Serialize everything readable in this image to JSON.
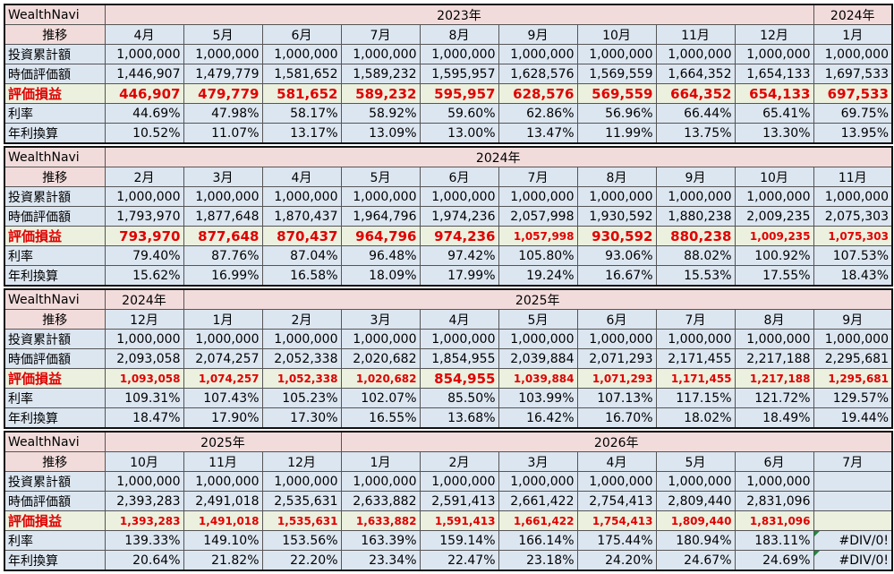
{
  "blocks": [
    {
      "header_label": "WealthNavi",
      "row_label": "推移",
      "years": [
        "2023年",
        null,
        null,
        null,
        null,
        null,
        null,
        null,
        null,
        "2024年"
      ],
      "months": [
        "4月",
        "5月",
        "6月",
        "7月",
        "8月",
        "9月",
        "10月",
        "11月",
        "12月",
        "1月"
      ],
      "rows": [
        {
          "label": "投資累計額",
          "values": [
            "1,000,000",
            "1,000,000",
            "1,000,000",
            "1,000,000",
            "1,000,000",
            "1,000,000",
            "1,000,000",
            "1,000,000",
            "1,000,000",
            "1,000,000"
          ]
        },
        {
          "label": "時価評価額",
          "values": [
            "1,446,907",
            "1,479,779",
            "1,581,652",
            "1,589,232",
            "1,595,957",
            "1,628,576",
            "1,569,559",
            "1,664,352",
            "1,654,133",
            "1,697,533"
          ]
        },
        {
          "label": "評価損益",
          "values": [
            "446,907",
            "479,779",
            "581,652",
            "589,232",
            "595,957",
            "628,576",
            "569,559",
            "664,352",
            "654,133",
            "697,533"
          ]
        },
        {
          "label": "利率",
          "values": [
            "44.69%",
            "47.98%",
            "58.17%",
            "58.92%",
            "59.60%",
            "62.86%",
            "56.96%",
            "66.44%",
            "65.41%",
            "69.75%"
          ]
        },
        {
          "label": "年利換算",
          "values": [
            "10.52%",
            "11.07%",
            "13.17%",
            "13.09%",
            "13.00%",
            "13.47%",
            "11.99%",
            "13.75%",
            "13.30%",
            "13.95%"
          ]
        }
      ]
    },
    {
      "header_label": "WealthNavi",
      "row_label": "推移",
      "years": [
        "2024年",
        null,
        null,
        null,
        null,
        null,
        null,
        null,
        null,
        null
      ],
      "months": [
        "2月",
        "3月",
        "4月",
        "5月",
        "6月",
        "7月",
        "8月",
        "9月",
        "10月",
        "11月"
      ],
      "rows": [
        {
          "label": "投資累計額",
          "values": [
            "1,000,000",
            "1,000,000",
            "1,000,000",
            "1,000,000",
            "1,000,000",
            "1,000,000",
            "1,000,000",
            "1,000,000",
            "1,000,000",
            "1,000,000"
          ]
        },
        {
          "label": "時価評価額",
          "values": [
            "1,793,970",
            "1,877,648",
            "1,870,437",
            "1,964,796",
            "1,974,236",
            "2,057,998",
            "1,930,592",
            "1,880,238",
            "2,009,235",
            "2,075,303"
          ]
        },
        {
          "label": "評価損益",
          "values": [
            "793,970",
            "877,648",
            "870,437",
            "964,796",
            "974,236",
            "1,057,998",
            "930,592",
            "880,238",
            "1,009,235",
            "1,075,303"
          ]
        },
        {
          "label": "利率",
          "values": [
            "79.40%",
            "87.76%",
            "87.04%",
            "96.48%",
            "97.42%",
            "105.80%",
            "93.06%",
            "88.02%",
            "100.92%",
            "107.53%"
          ]
        },
        {
          "label": "年利換算",
          "values": [
            "15.62%",
            "16.99%",
            "16.58%",
            "18.09%",
            "17.99%",
            "19.24%",
            "16.67%",
            "15.53%",
            "17.55%",
            "18.43%"
          ]
        }
      ]
    },
    {
      "header_label": "WealthNavi",
      "row_label": "推移",
      "years": [
        "2024年",
        "2025年",
        null,
        null,
        null,
        null,
        null,
        null,
        null,
        null
      ],
      "months": [
        "12月",
        "1月",
        "2月",
        "3月",
        "4月",
        "5月",
        "6月",
        "7月",
        "8月",
        "9月"
      ],
      "rows": [
        {
          "label": "投資累計額",
          "values": [
            "1,000,000",
            "1,000,000",
            "1,000,000",
            "1,000,000",
            "1,000,000",
            "1,000,000",
            "1,000,000",
            "1,000,000",
            "1,000,000",
            "1,000,000"
          ]
        },
        {
          "label": "時価評価額",
          "values": [
            "2,093,058",
            "2,074,257",
            "2,052,338",
            "2,020,682",
            "1,854,955",
            "2,039,884",
            "2,071,293",
            "2,171,455",
            "2,217,188",
            "2,295,681"
          ]
        },
        {
          "label": "評価損益",
          "values": [
            "1,093,058",
            "1,074,257",
            "1,052,338",
            "1,020,682",
            "854,955",
            "1,039,884",
            "1,071,293",
            "1,171,455",
            "1,217,188",
            "1,295,681"
          ]
        },
        {
          "label": "利率",
          "values": [
            "109.31%",
            "107.43%",
            "105.23%",
            "102.07%",
            "85.50%",
            "103.99%",
            "107.13%",
            "117.15%",
            "121.72%",
            "129.57%"
          ]
        },
        {
          "label": "年利換算",
          "values": [
            "18.47%",
            "17.90%",
            "17.30%",
            "16.55%",
            "13.68%",
            "16.42%",
            "16.70%",
            "18.02%",
            "18.49%",
            "19.44%"
          ]
        }
      ]
    },
    {
      "header_label": "WealthNavi",
      "row_label": "推移",
      "years": [
        "2025年",
        null,
        null,
        "2026年",
        null,
        null,
        null,
        null,
        null,
        null
      ],
      "months": [
        "10月",
        "11月",
        "12月",
        "1月",
        "2月",
        "3月",
        "4月",
        "5月",
        "6月",
        "7月"
      ],
      "rows": [
        {
          "label": "投資累計額",
          "values": [
            "1,000,000",
            "1,000,000",
            "1,000,000",
            "1,000,000",
            "1,000,000",
            "1,000,000",
            "1,000,000",
            "1,000,000",
            "1,000,000",
            null
          ]
        },
        {
          "label": "時価評価額",
          "values": [
            "2,393,283",
            "2,491,018",
            "2,535,631",
            "2,633,882",
            "2,591,413",
            "2,661,422",
            "2,754,413",
            "2,809,440",
            "2,831,096",
            null
          ]
        },
        {
          "label": "評価損益",
          "values": [
            "1,393,283",
            "1,491,018",
            "1,535,631",
            "1,633,882",
            "1,591,413",
            "1,661,422",
            "1,754,413",
            "1,809,440",
            "1,831,096",
            null
          ]
        },
        {
          "label": "利率",
          "values": [
            "139.33%",
            "149.10%",
            "153.56%",
            "163.39%",
            "159.14%",
            "166.14%",
            "175.44%",
            "180.94%",
            "183.11%",
            "#DIV/0!"
          ]
        },
        {
          "label": "年利換算",
          "values": [
            "20.64%",
            "21.82%",
            "22.20%",
            "23.34%",
            "22.47%",
            "23.18%",
            "24.20%",
            "24.67%",
            "24.69%",
            "#DIV/0!"
          ]
        }
      ]
    }
  ]
}
